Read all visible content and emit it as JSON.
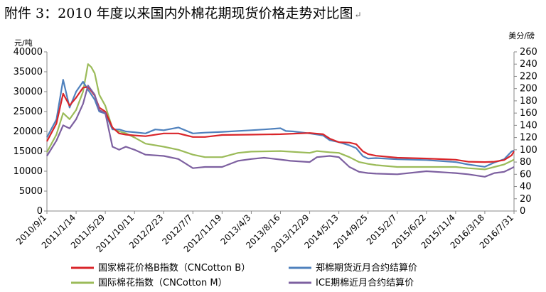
{
  "caption": {
    "text": "附件 3：2010 年度以来国内外棉花期现货价格走势对比图",
    "mark": "↵"
  },
  "chart_data": {
    "type": "line",
    "ylabel_left": "元/吨",
    "ylabel_right": "美分/磅",
    "ylim_left": [
      0,
      40000
    ],
    "ylim_right": [
      0,
      260
    ],
    "yticks_left": [
      "0",
      "5000",
      "10000",
      "15000",
      "20000",
      "25000",
      "30000",
      "35000",
      "40000"
    ],
    "yticks_right": [
      "0",
      "20",
      "40",
      "60",
      "80",
      "100",
      "120",
      "140",
      "160",
      "180",
      "200",
      "220",
      "240",
      "260"
    ],
    "x_ticks": [
      "2010/9/1",
      "2011/1/14",
      "2011/5/29",
      "2011/10/11",
      "2012/2/23",
      "2012/7/7",
      "2012/11/19",
      "2013/4/3",
      "2013/8/16",
      "2013/12/29",
      "2014/5/13",
      "2014/9/25",
      "2015/2/7",
      "2015/6/22",
      "2015/11/4",
      "2016/3/18",
      "2016/7/31"
    ],
    "grid": false,
    "legend_position": "bottom",
    "series": [
      {
        "name": "国家棉花价格B指数（CNCotton B）",
        "axis": "left",
        "color": "#d9252a",
        "points": [
          [
            "2010/9/1",
            17500
          ],
          [
            "2010/10/15",
            22000
          ],
          [
            "2010/11/15",
            29500
          ],
          [
            "2010/12/15",
            26500
          ],
          [
            "2011/1/14",
            28500
          ],
          [
            "2011/2/15",
            31000
          ],
          [
            "2011/3/10",
            31200
          ],
          [
            "2011/4/10",
            29000
          ],
          [
            "2011/5/1",
            26000
          ],
          [
            "2011/5/29",
            25000
          ],
          [
            "2011/7/1",
            21000
          ],
          [
            "2011/8/1",
            19500
          ],
          [
            "2011/9/1",
            19200
          ],
          [
            "2011/10/11",
            19000
          ],
          [
            "2011/12/1",
            18800
          ],
          [
            "2012/2/23",
            19500
          ],
          [
            "2012/5/1",
            19500
          ],
          [
            "2012/7/7",
            18600
          ],
          [
            "2012/9/1",
            18600
          ],
          [
            "2012/11/19",
            19100
          ],
          [
            "2013/4/3",
            19200
          ],
          [
            "2013/8/16",
            19300
          ],
          [
            "2013/12/29",
            19600
          ],
          [
            "2014/3/1",
            19300
          ],
          [
            "2014/4/1",
            18200
          ],
          [
            "2014/5/13",
            17300
          ],
          [
            "2014/7/1",
            17200
          ],
          [
            "2014/8/1",
            16800
          ],
          [
            "2014/9/1",
            15000
          ],
          [
            "2014/9/25",
            14300
          ],
          [
            "2014/11/1",
            13900
          ],
          [
            "2015/2/7",
            13400
          ],
          [
            "2015/6/22",
            13200
          ],
          [
            "2015/11/4",
            12900
          ],
          [
            "2016/1/1",
            12400
          ],
          [
            "2016/3/18",
            12300
          ],
          [
            "2016/5/1",
            12400
          ],
          [
            "2016/6/15",
            12800
          ],
          [
            "2016/7/20",
            14000
          ],
          [
            "2016/7/31",
            15000
          ]
        ]
      },
      {
        "name": "郑棉期货近月合约结算价",
        "axis": "left",
        "color": "#4f81bd",
        "points": [
          [
            "2010/9/1",
            18500
          ],
          [
            "2010/10/15",
            23000
          ],
          [
            "2010/11/15",
            33000
          ],
          [
            "2010/12/15",
            26000
          ],
          [
            "2011/1/14",
            30000
          ],
          [
            "2011/2/15",
            32500
          ],
          [
            "2011/3/10",
            30500
          ],
          [
            "2011/4/10",
            28000
          ],
          [
            "2011/5/1",
            25000
          ],
          [
            "2011/5/29",
            24500
          ],
          [
            "2011/7/1",
            20500
          ],
          [
            "2011/8/1",
            20500
          ],
          [
            "2011/9/1",
            20000
          ],
          [
            "2011/10/11",
            19800
          ],
          [
            "2011/12/1",
            19500
          ],
          [
            "2012/1/15",
            20500
          ],
          [
            "2012/2/23",
            20300
          ],
          [
            "2012/5/1",
            21000
          ],
          [
            "2012/7/7",
            19500
          ],
          [
            "2012/9/1",
            19700
          ],
          [
            "2012/11/19",
            19900
          ],
          [
            "2013/4/3",
            20300
          ],
          [
            "2013/6/1",
            20500
          ],
          [
            "2013/8/16",
            20800
          ],
          [
            "2013/9/10",
            20100
          ],
          [
            "2013/10/15",
            20000
          ],
          [
            "2013/12/29",
            19500
          ],
          [
            "2014/3/1",
            19000
          ],
          [
            "2014/4/1",
            17800
          ],
          [
            "2014/5/13",
            17300
          ],
          [
            "2014/7/1",
            16500
          ],
          [
            "2014/8/1",
            15800
          ],
          [
            "2014/9/1",
            13800
          ],
          [
            "2014/9/25",
            13200
          ],
          [
            "2014/11/1",
            13300
          ],
          [
            "2015/2/7",
            13000
          ],
          [
            "2015/6/22",
            12800
          ],
          [
            "2015/11/4",
            12300
          ],
          [
            "2016/1/1",
            11700
          ],
          [
            "2016/3/18",
            11100
          ],
          [
            "2016/5/1",
            12200
          ],
          [
            "2016/6/15",
            13000
          ],
          [
            "2016/7/20",
            15000
          ],
          [
            "2016/7/31",
            15200
          ]
        ]
      },
      {
        "name": "国际棉花指数（CNCotton M）",
        "axis": "right",
        "color": "#9bbb59",
        "points": [
          [
            "2010/9/1",
            96
          ],
          [
            "2010/10/15",
            125
          ],
          [
            "2010/11/15",
            160
          ],
          [
            "2010/12/15",
            150
          ],
          [
            "2011/1/14",
            165
          ],
          [
            "2011/2/15",
            195
          ],
          [
            "2011/3/10",
            240
          ],
          [
            "2011/3/25",
            235
          ],
          [
            "2011/4/10",
            225
          ],
          [
            "2011/5/1",
            190
          ],
          [
            "2011/5/29",
            172
          ],
          [
            "2011/7/1",
            135
          ],
          [
            "2011/8/1",
            130
          ],
          [
            "2011/9/1",
            127
          ],
          [
            "2011/10/11",
            120
          ],
          [
            "2011/12/1",
            110
          ],
          [
            "2012/2/23",
            105
          ],
          [
            "2012/5/1",
            100
          ],
          [
            "2012/7/7",
            92
          ],
          [
            "2012/9/1",
            88
          ],
          [
            "2012/11/19",
            88
          ],
          [
            "2013/2/1",
            95
          ],
          [
            "2013/4/3",
            97
          ],
          [
            "2013/8/16",
            98
          ],
          [
            "2013/12/29",
            95
          ],
          [
            "2014/2/1",
            98
          ],
          [
            "2014/4/1",
            96
          ],
          [
            "2014/5/13",
            95
          ],
          [
            "2014/7/1",
            88
          ],
          [
            "2014/8/15",
            80
          ],
          [
            "2014/9/25",
            77
          ],
          [
            "2014/11/1",
            75
          ],
          [
            "2015/2/7",
            72
          ],
          [
            "2015/6/22",
            72
          ],
          [
            "2015/11/4",
            72
          ],
          [
            "2016/1/1",
            70
          ],
          [
            "2016/3/18",
            68
          ],
          [
            "2016/5/1",
            72
          ],
          [
            "2016/6/15",
            76
          ],
          [
            "2016/7/20",
            82
          ],
          [
            "2016/7/31",
            84
          ]
        ]
      },
      {
        "name": "ICE期棉近月合约结算价",
        "axis": "right",
        "color": "#7d60a0",
        "points": [
          [
            "2010/9/1",
            90
          ],
          [
            "2010/10/15",
            115
          ],
          [
            "2010/11/15",
            140
          ],
          [
            "2010/12/15",
            135
          ],
          [
            "2011/1/14",
            150
          ],
          [
            "2011/2/15",
            175
          ],
          [
            "2011/3/10",
            205
          ],
          [
            "2011/4/10",
            190
          ],
          [
            "2011/5/1",
            165
          ],
          [
            "2011/5/29",
            160
          ],
          [
            "2011/7/1",
            105
          ],
          [
            "2011/8/1",
            100
          ],
          [
            "2011/9/1",
            105
          ],
          [
            "2011/10/11",
            100
          ],
          [
            "2011/12/1",
            92
          ],
          [
            "2012/2/23",
            90
          ],
          [
            "2012/5/1",
            85
          ],
          [
            "2012/7/7",
            70
          ],
          [
            "2012/9/1",
            72
          ],
          [
            "2012/11/19",
            72
          ],
          [
            "2013/2/1",
            82
          ],
          [
            "2013/4/3",
            85
          ],
          [
            "2013/6/1",
            87
          ],
          [
            "2013/8/16",
            84
          ],
          [
            "2013/10/1",
            82
          ],
          [
            "2013/12/29",
            80
          ],
          [
            "2014/2/1",
            88
          ],
          [
            "2014/4/1",
            90
          ],
          [
            "2014/5/13",
            88
          ],
          [
            "2014/7/1",
            72
          ],
          [
            "2014/8/15",
            64
          ],
          [
            "2014/9/25",
            62
          ],
          [
            "2014/11/1",
            61
          ],
          [
            "2015/2/7",
            60
          ],
          [
            "2015/6/22",
            65
          ],
          [
            "2015/11/4",
            62
          ],
          [
            "2016/1/1",
            60
          ],
          [
            "2016/3/18",
            56
          ],
          [
            "2016/5/1",
            62
          ],
          [
            "2016/6/15",
            64
          ],
          [
            "2016/7/20",
            70
          ],
          [
            "2016/7/31",
            72
          ]
        ]
      }
    ]
  }
}
